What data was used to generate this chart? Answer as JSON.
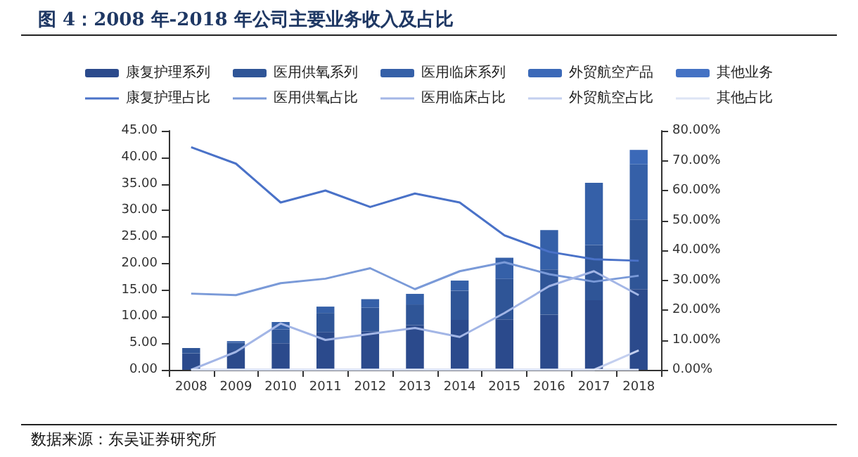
{
  "chart_data": {
    "type": "bar",
    "title": "图 4：2008 年-2018 年公司主要业务收入及占比",
    "categories": [
      "2008",
      "2009",
      "2010",
      "2011",
      "2012",
      "2013",
      "2014",
      "2015",
      "2016",
      "2017",
      "2018"
    ],
    "stacked": true,
    "series": [
      {
        "name": "康复护理系列",
        "color": "#2b4a8c",
        "values": [
          3.1,
          3.7,
          5,
          7.1,
          7.2,
          8.4,
          9.4,
          9.5,
          10.4,
          13.1,
          15.2
        ]
      },
      {
        "name": "医用供氧系列",
        "color": "#2f5597",
        "values": [
          1,
          1.4,
          2.6,
          3.6,
          4.5,
          3.9,
          5.5,
          7.6,
          8.5,
          10.4,
          13.1
        ]
      },
      {
        "name": "医用临床系列",
        "color": "#3560a8",
        "values": [
          0,
          0.3,
          1.4,
          1.2,
          1.6,
          2,
          1.9,
          4,
          7.4,
          11.7,
          10.4
        ]
      },
      {
        "name": "外贸航空产品",
        "color": "#3b69b8",
        "values": [
          0,
          0,
          0,
          0,
          0,
          0,
          0,
          0,
          0,
          0,
          2.7
        ]
      },
      {
        "name": "其他业务",
        "color": "#4472c4",
        "values": [
          0,
          0,
          0,
          0,
          0,
          0,
          0,
          0,
          0,
          0,
          0
        ]
      },
      {
        "name": "康复护理占比",
        "type": "line",
        "axis": "y2",
        "color": "#4a72c8",
        "values": [
          74.5,
          69,
          56,
          60,
          54.5,
          59,
          56,
          45,
          39.5,
          37,
          36.5
        ]
      },
      {
        "name": "医用供氧占比",
        "type": "line",
        "axis": "y2",
        "color": "#7a9ad8",
        "values": [
          25.5,
          25,
          29,
          30.5,
          34,
          27,
          33,
          36,
          32,
          29.5,
          31.5
        ]
      },
      {
        "name": "医用临床占比",
        "type": "line",
        "axis": "y2",
        "color": "#a3b6e6",
        "values": [
          0,
          6,
          15.5,
          10,
          12,
          14,
          11,
          19,
          28,
          33,
          25
        ]
      },
      {
        "name": "外贸航空占比",
        "type": "line",
        "axis": "y2",
        "color": "#c3cfef",
        "values": [
          0,
          0,
          0,
          0,
          0,
          0,
          0,
          0,
          0,
          0,
          6.5
        ]
      },
      {
        "name": "其他占比",
        "type": "line",
        "axis": "y2",
        "color": "#dde4f5",
        "values": [
          0,
          0,
          0,
          0,
          0,
          0,
          0,
          0,
          0,
          0,
          0
        ]
      }
    ],
    "ylim": [
      0,
      45
    ],
    "yticks": [
      {
        "value": 0,
        "label": "0.00"
      },
      {
        "value": 5,
        "label": "5.00"
      },
      {
        "value": 10,
        "label": "10.00"
      },
      {
        "value": 15,
        "label": "15.00"
      },
      {
        "value": 20,
        "label": "20.00"
      },
      {
        "value": 25,
        "label": "25.00"
      },
      {
        "value": 30,
        "label": "30.00"
      },
      {
        "value": 35,
        "label": "35.00"
      },
      {
        "value": 40,
        "label": "40.00"
      },
      {
        "value": 45,
        "label": "45.00"
      }
    ],
    "y2lim": [
      0,
      80
    ],
    "y2ticks": [
      {
        "value": 0,
        "label": "0.00%"
      },
      {
        "value": 10,
        "label": "10.00%"
      },
      {
        "value": 20,
        "label": "20.00%"
      },
      {
        "value": 30,
        "label": "30.00%"
      },
      {
        "value": 40,
        "label": "40.00%"
      },
      {
        "value": 50,
        "label": "50.00%"
      },
      {
        "value": 60,
        "label": "60.00%"
      },
      {
        "value": 70,
        "label": "70.00%"
      },
      {
        "value": 80,
        "label": "80.00%"
      }
    ],
    "grid": false,
    "legend": "top",
    "marker": "none",
    "line_style": "solid",
    "annotations": [
      "数据来源：东吴证券研究所"
    ]
  }
}
